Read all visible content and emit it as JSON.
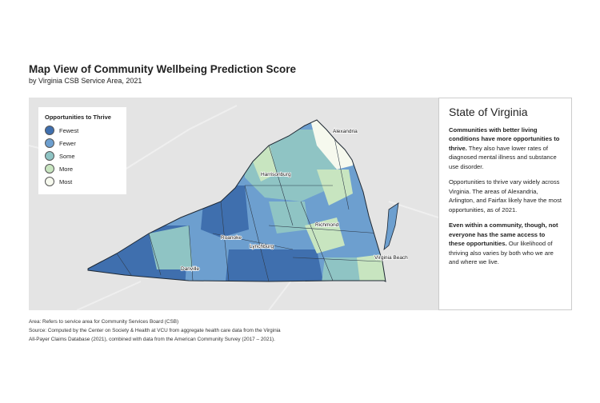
{
  "header": {
    "title": "Map View of Community Wellbeing Prediction Score",
    "subtitle": "by Virginia CSB Service Area, 2021"
  },
  "map": {
    "legend": {
      "title": "Opportunities to Thrive",
      "items": [
        {
          "label": "Fewest",
          "color": "#3f6fae"
        },
        {
          "label": "Fewer",
          "color": "#6d9fcf"
        },
        {
          "label": "Some",
          "color": "#8fc4c4"
        },
        {
          "label": "More",
          "color": "#c8e5c0"
        },
        {
          "label": "Most",
          "color": "#f6f9ee"
        }
      ]
    },
    "cities": [
      "Alexandria",
      "Harrisonburg",
      "Richmond",
      "Roanoke",
      "Lynchburg",
      "Virginia Beach",
      "Danville"
    ]
  },
  "panel": {
    "heading": "State of Virginia",
    "paragraphs": [
      {
        "bold": "Communities with better living conditions have more opportunities to thrive.",
        "text": "They also have lower rates of diagnosed mental illness and substance use disorder."
      },
      {
        "text": "Opportunities to thrive vary widely across Virginia. The areas of Alexandria, Arlington, and Fairfax likely have the most opportunities, as of 2021."
      },
      {
        "bold": "Even within a community, though, not everyone has the same access to these opportunities.",
        "text": "Our likelihood of thriving also varies by both who we are and where we live."
      }
    ]
  },
  "footnotes": [
    "Area: Refers to service area for Community Services Board (CSB)",
    "Source: Computed by the Center on Society & Health at VCU from aggregate health care data from the Virginia",
    "All-Payer Claims Database (2021), combined with data from the American Community Survey (2017 – 2021)."
  ]
}
